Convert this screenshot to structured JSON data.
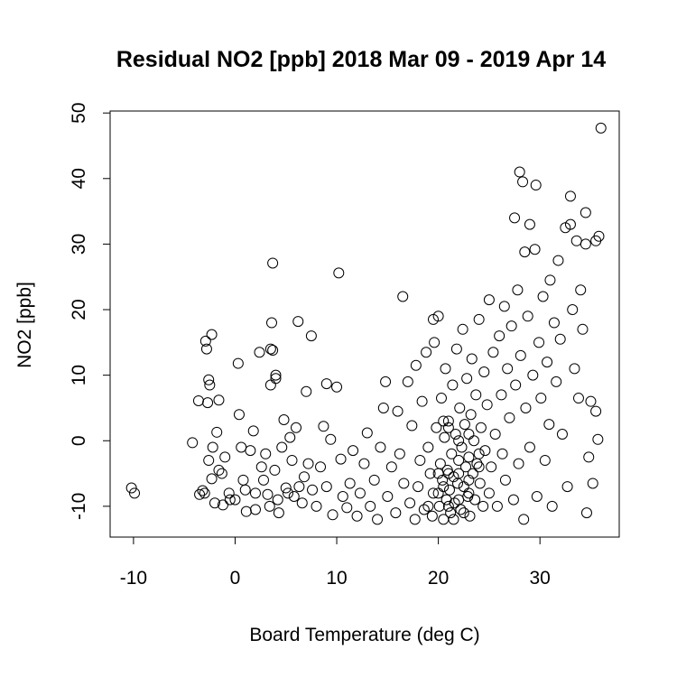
{
  "chart_data": {
    "type": "scatter",
    "title": "Residual NO2 [ppb] 2018 Mar 09 - 2019 Apr 14",
    "x_label": "Board Temperature (deg C)",
    "y_label": "NO2 [ppb]",
    "color": "#000000",
    "xlim": [
      -12.3,
      37.8
    ],
    "ylim": [
      -14.7,
      50.3
    ],
    "xticks": [
      -10,
      0,
      10,
      20,
      30
    ],
    "yticks": [
      -10,
      0,
      10,
      20,
      30,
      40,
      50
    ],
    "grid": false,
    "x": [
      -10.2,
      -9.9,
      -4.2,
      -3.6,
      -3.5,
      -3.2,
      -3,
      -2.9,
      -2.8,
      -2.3,
      -2.6,
      -2.5,
      -2.7,
      -1.6,
      -2.6,
      -2.2,
      -1.8,
      -1.6,
      -1.3,
      -1,
      -2.3,
      -2,
      -1.2,
      -0.6,
      -0.5,
      0,
      0.3,
      0.4,
      0.6,
      0.8,
      1,
      1.1,
      1.5,
      1.8,
      2,
      2,
      2.4,
      2.6,
      2.8,
      3,
      3.2,
      3.4,
      3.5,
      3.7,
      3.6,
      3.7,
      4,
      4,
      3.5,
      3.9,
      4.2,
      4.3,
      4.6,
      4.8,
      5,
      5.2,
      5.4,
      5.6,
      5.8,
      6,
      6.2,
      6.3,
      6.6,
      6.8,
      7,
      7.2,
      7.5,
      7.6,
      8,
      8.4,
      8.7,
      9,
      9,
      9.4,
      9.6,
      10,
      10.2,
      10.4,
      10.6,
      11,
      11.3,
      11.6,
      12,
      12.3,
      12.7,
      13,
      13.3,
      13.7,
      14,
      14.3,
      14.6,
      14.8,
      15,
      15.4,
      15.8,
      16,
      16.2,
      16.5,
      16.6,
      17,
      17.2,
      17.4,
      17.7,
      17.8,
      18,
      18.2,
      18.4,
      18.6,
      18.8,
      19,
      19.2,
      19.4,
      19.5,
      19.6,
      19.8,
      20,
      20,
      20.1,
      20.2,
      20.3,
      20.4,
      20.5,
      20.6,
      20.7,
      20.8,
      20.9,
      21,
      21.1,
      21.2,
      21.3,
      21.4,
      21.5,
      21.6,
      21.7,
      21.8,
      21.9,
      22,
      22.1,
      22.2,
      22.3,
      22.4,
      22.5,
      22.6,
      22.7,
      22.8,
      22.9,
      23,
      23.1,
      23.2,
      23.3,
      23.4,
      23.5,
      23.6,
      23.7,
      23.8,
      24,
      24.1,
      24.2,
      24.4,
      24.5,
      24.6,
      24.8,
      25,
      25,
      25.2,
      25.4,
      25.6,
      25.8,
      26,
      26.2,
      26.3,
      26.5,
      26.6,
      26.8,
      27,
      27.2,
      27.4,
      27.5,
      27.6,
      27.8,
      27.9,
      28,
      28.1,
      28.3,
      28.4,
      28.5,
      28.6,
      28.8,
      29,
      29,
      29.3,
      29.5,
      29.6,
      29.7,
      29.9,
      30.1,
      30.3,
      30.5,
      30.7,
      30.9,
      31,
      31.2,
      31.4,
      31.6,
      31.8,
      32,
      32.2,
      32.5,
      32.7,
      33,
      33,
      33.2,
      33.4,
      33.6,
      33.8,
      34,
      34.2,
      34.5,
      34.5,
      34.6,
      34.8,
      35,
      35.2,
      35.5,
      35.5,
      35.7,
      35.8,
      36,
      19,
      19.5,
      20.5,
      21,
      21.5,
      22,
      22.5,
      23,
      21,
      20,
      22,
      23,
      24,
      22,
      21,
      20.5,
      23,
      24
    ],
    "values": [
      -7.2,
      -8,
      -0.3,
      6.1,
      -8.2,
      -7.6,
      -8,
      15.2,
      14,
      16.2,
      9.3,
      8.5,
      5.8,
      6.2,
      -3,
      -1,
      1.3,
      -4.5,
      -5,
      -2.5,
      -5.8,
      -9.5,
      -9.8,
      -8,
      -9,
      -9,
      11.8,
      4,
      -1,
      -6,
      -7.5,
      -10.8,
      -1.5,
      1.5,
      -8,
      -10.5,
      13.5,
      -4,
      -6,
      -2,
      -8.2,
      -10,
      14,
      13.8,
      18,
      27.1,
      9.5,
      10,
      8.5,
      -4.5,
      -9,
      -11,
      -1,
      3.2,
      -7.2,
      -8,
      0.5,
      -3,
      -8.5,
      2,
      18.2,
      -7,
      -9.5,
      -5.5,
      7.5,
      -3.5,
      16,
      -7.5,
      -10,
      -4,
      2.2,
      8.7,
      -7,
      0.2,
      -11.3,
      8.2,
      25.6,
      -2.8,
      -8.5,
      -10.2,
      -6.5,
      -1.5,
      -11.5,
      -8,
      -3.5,
      1.2,
      -10,
      -6,
      -12,
      -1,
      5,
      9,
      -8.5,
      -4,
      -11,
      4.5,
      -2,
      22,
      -6.5,
      9,
      -9.5,
      2.3,
      -12,
      11.5,
      -7,
      -3,
      6,
      -10.5,
      13.5,
      -1,
      -5,
      -11.5,
      18.5,
      15,
      2,
      -8,
      19,
      -10,
      -3.5,
      6.5,
      -6,
      -12,
      0.5,
      11,
      -9,
      -4.5,
      3,
      -7.5,
      -11,
      -2,
      8.5,
      -5.5,
      -9.5,
      1,
      14,
      -6.5,
      -3,
      5,
      -10.5,
      -1,
      17,
      -7,
      2.5,
      -4,
      9.5,
      -8.5,
      -2.5,
      -11.5,
      4,
      12.5,
      -5,
      0,
      -9,
      7,
      -3.5,
      18.5,
      -6.5,
      2,
      -10,
      10.5,
      -1.5,
      5.5,
      21.5,
      -8,
      -4,
      13.5,
      1,
      -10,
      16,
      7,
      -2,
      20.5,
      -6,
      11,
      3.5,
      17.5,
      -9,
      34,
      8.5,
      23,
      -3.5,
      41,
      13,
      39.5,
      -12,
      28.8,
      5,
      19,
      -1,
      33,
      10,
      29.2,
      39,
      -8.5,
      15,
      6.5,
      22,
      -3,
      12,
      2.5,
      24.5,
      -10,
      18,
      9,
      27.5,
      15.5,
      1,
      32.5,
      -7,
      37.3,
      33,
      20,
      11,
      30.5,
      6.5,
      23,
      17,
      34.8,
      30,
      -11,
      -2.5,
      6,
      -6.5,
      30.5,
      4.5,
      0.2,
      31.2,
      47.7,
      -10,
      -8,
      -7,
      -10,
      -12,
      -9,
      -11,
      -6,
      -5,
      -5,
      -5,
      -8,
      -4,
      0,
      2,
      3,
      1,
      -2
    ]
  }
}
